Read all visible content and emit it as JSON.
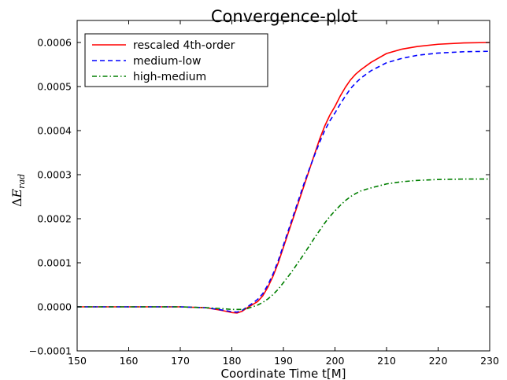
{
  "chart_data": {
    "type": "line",
    "title": "Convergence-plot",
    "xlabel": "Coordinate Time t[M]",
    "ylabel": "ΔE_rad",
    "xlim": [
      150,
      230
    ],
    "ylim": [
      -0.0001,
      0.00065
    ],
    "xticks": [
      150,
      160,
      170,
      180,
      190,
      200,
      210,
      220,
      230
    ],
    "xtick_labels": [
      "150",
      "160",
      "170",
      "180",
      "190",
      "200",
      "210",
      "220",
      "230"
    ],
    "yticks": [
      -0.0001,
      0.0,
      0.0001,
      0.0002,
      0.0003,
      0.0004,
      0.0005,
      0.0006
    ],
    "ytick_labels": [
      "−0.0001",
      "0.0000",
      "0.0001",
      "0.0002",
      "0.0003",
      "0.0004",
      "0.0005",
      "0.0006"
    ],
    "legend_position": "top-left",
    "grid": false,
    "series": [
      {
        "name": "rescaled 4th-order",
        "color": "#ff0000",
        "style": "solid",
        "x": [
          150,
          160,
          170,
          175,
          178,
          180,
          181,
          182,
          183,
          184,
          185,
          186,
          187,
          188,
          189,
          190,
          191,
          192,
          193,
          194,
          195,
          196,
          197,
          198,
          199,
          200,
          201,
          202,
          203,
          204,
          205,
          207,
          210,
          213,
          216,
          220,
          225,
          230
        ],
        "y": [
          0.0,
          0.0,
          0.0,
          -2e-06,
          -8e-06,
          -1.3e-05,
          -1.4e-05,
          -1e-05,
          -2e-06,
          5e-06,
          1.2e-05,
          2.5e-05,
          4.5e-05,
          7e-05,
          0.0001,
          0.000135,
          0.00017,
          0.000205,
          0.00024,
          0.000275,
          0.00031,
          0.000345,
          0.00038,
          0.00041,
          0.000435,
          0.000455,
          0.000478,
          0.000498,
          0.000515,
          0.000528,
          0.000538,
          0.000555,
          0.000575,
          0.000585,
          0.000591,
          0.000596,
          0.000599,
          0.0006
        ]
      },
      {
        "name": "medium-low",
        "color": "#0000ff",
        "style": "dashed",
        "x": [
          150,
          160,
          170,
          175,
          178,
          180,
          181,
          182,
          183,
          184,
          185,
          186,
          187,
          188,
          189,
          190,
          191,
          192,
          193,
          194,
          195,
          196,
          197,
          198,
          199,
          200,
          201,
          202,
          203,
          204,
          205,
          207,
          210,
          213,
          216,
          220,
          225,
          230
        ],
        "y": [
          0.0,
          0.0,
          0.0,
          -2e-06,
          -7e-06,
          -1.1e-05,
          -1.2e-05,
          -8e-06,
          0.0,
          8e-06,
          1.7e-05,
          3e-05,
          5e-05,
          7.5e-05,
          0.000105,
          0.00014,
          0.000175,
          0.00021,
          0.000245,
          0.00028,
          0.000312,
          0.000343,
          0.000373,
          0.0004,
          0.000422,
          0.00044,
          0.00046,
          0.000478,
          0.000495,
          0.000508,
          0.000519,
          0.000536,
          0.000554,
          0.000564,
          0.000571,
          0.000576,
          0.000579,
          0.00058
        ]
      },
      {
        "name": "high-medium",
        "color": "#007f00",
        "style": "dashdot",
        "x": [
          150,
          160,
          170,
          175,
          178,
          180,
          182,
          183,
          184,
          185,
          186,
          187,
          188,
          189,
          190,
          191,
          192,
          193,
          194,
          195,
          196,
          197,
          198,
          199,
          200,
          201,
          202,
          203,
          204,
          205,
          207,
          210,
          213,
          216,
          220,
          225,
          230
        ],
        "y": [
          0.0,
          0.0,
          0.0,
          -2e-06,
          -4e-06,
          -6e-06,
          -6e-06,
          -4e-06,
          0.0,
          4e-06,
          1e-05,
          1.8e-05,
          2.8e-05,
          4e-05,
          5.5e-05,
          7e-05,
          8.6e-05,
          0.000103,
          0.00012,
          0.000138,
          0.000156,
          0.000173,
          0.00019,
          0.000205,
          0.000218,
          0.00023,
          0.000241,
          0.00025,
          0.000257,
          0.000263,
          0.00027,
          0.000279,
          0.000284,
          0.000287,
          0.000289,
          0.00029,
          0.00029
        ]
      }
    ]
  }
}
